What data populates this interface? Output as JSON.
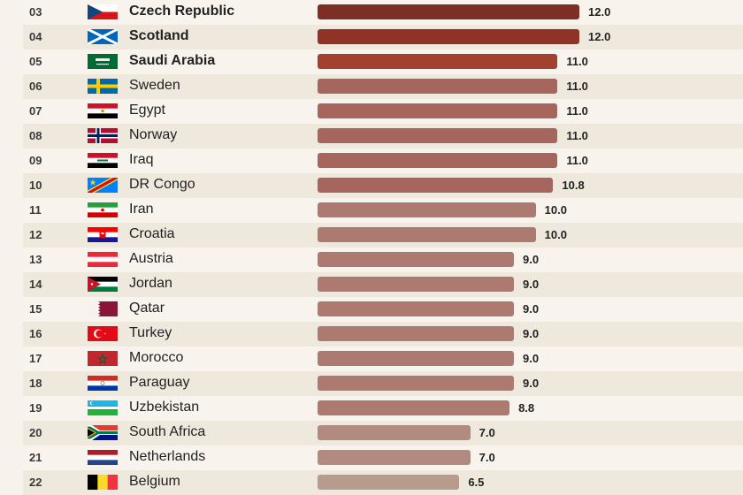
{
  "chart_data": {
    "type": "bar",
    "orientation": "horizontal",
    "rows": [
      {
        "rank": "03",
        "country": "Czech Republic",
        "value": 12.0,
        "label": "12.0",
        "flag": "czech-republic-flag",
        "highlight": true
      },
      {
        "rank": "04",
        "country": "Scotland",
        "value": 12.0,
        "label": "12.0",
        "flag": "scotland-flag",
        "highlight": true
      },
      {
        "rank": "05",
        "country": "Saudi Arabia",
        "value": 11.0,
        "label": "11.0",
        "flag": "saudi-arabia-flag",
        "highlight": true
      },
      {
        "rank": "06",
        "country": "Sweden",
        "value": 11.0,
        "label": "11.0",
        "flag": "sweden-flag",
        "highlight": false
      },
      {
        "rank": "07",
        "country": "Egypt",
        "value": 11.0,
        "label": "11.0",
        "flag": "egypt-flag",
        "highlight": false
      },
      {
        "rank": "08",
        "country": "Norway",
        "value": 11.0,
        "label": "11.0",
        "flag": "norway-flag",
        "highlight": false
      },
      {
        "rank": "09",
        "country": "Iraq",
        "value": 11.0,
        "label": "11.0",
        "flag": "iraq-flag",
        "highlight": false
      },
      {
        "rank": "10",
        "country": "DR Congo",
        "value": 10.8,
        "label": "10.8",
        "flag": "dr-congo-flag",
        "highlight": false
      },
      {
        "rank": "11",
        "country": "Iran",
        "value": 10.0,
        "label": "10.0",
        "flag": "iran-flag",
        "highlight": false
      },
      {
        "rank": "12",
        "country": "Croatia",
        "value": 10.0,
        "label": "10.0",
        "flag": "croatia-flag",
        "highlight": false
      },
      {
        "rank": "13",
        "country": "Austria",
        "value": 9.0,
        "label": "9.0",
        "flag": "austria-flag",
        "highlight": false
      },
      {
        "rank": "14",
        "country": "Jordan",
        "value": 9.0,
        "label": "9.0",
        "flag": "jordan-flag",
        "highlight": false
      },
      {
        "rank": "15",
        "country": "Qatar",
        "value": 9.0,
        "label": "9.0",
        "flag": "qatar-flag",
        "highlight": false
      },
      {
        "rank": "16",
        "country": "Turkey",
        "value": 9.0,
        "label": "9.0",
        "flag": "turkey-flag",
        "highlight": false
      },
      {
        "rank": "17",
        "country": "Morocco",
        "value": 9.0,
        "label": "9.0",
        "flag": "morocco-flag",
        "highlight": false
      },
      {
        "rank": "18",
        "country": "Paraguay",
        "value": 9.0,
        "label": "9.0",
        "flag": "paraguay-flag",
        "highlight": false
      },
      {
        "rank": "19",
        "country": "Uzbekistan",
        "value": 8.8,
        "label": "8.8",
        "flag": "uzbekistan-flag",
        "highlight": false
      },
      {
        "rank": "20",
        "country": "South Africa",
        "value": 7.0,
        "label": "7.0",
        "flag": "south-africa-flag",
        "highlight": false
      },
      {
        "rank": "21",
        "country": "Netherlands",
        "value": 7.0,
        "label": "7.0",
        "flag": "netherlands-flag",
        "highlight": false
      },
      {
        "rank": "22",
        "country": "Belgium",
        "value": 6.5,
        "label": "6.5",
        "flag": "belgium-flag",
        "highlight": false
      }
    ],
    "xlim": [
      0,
      12.0
    ],
    "colors": {
      "top1": "#7d2e25",
      "top2": "#8f3327",
      "top3": "#a3412f",
      "high": "#a6655d",
      "mid": "#ad7a72",
      "low": "#b28a80",
      "lowest": "#b79b8e",
      "row_alt": "#efe8dd",
      "row_plain": "#f8f4ed"
    }
  }
}
